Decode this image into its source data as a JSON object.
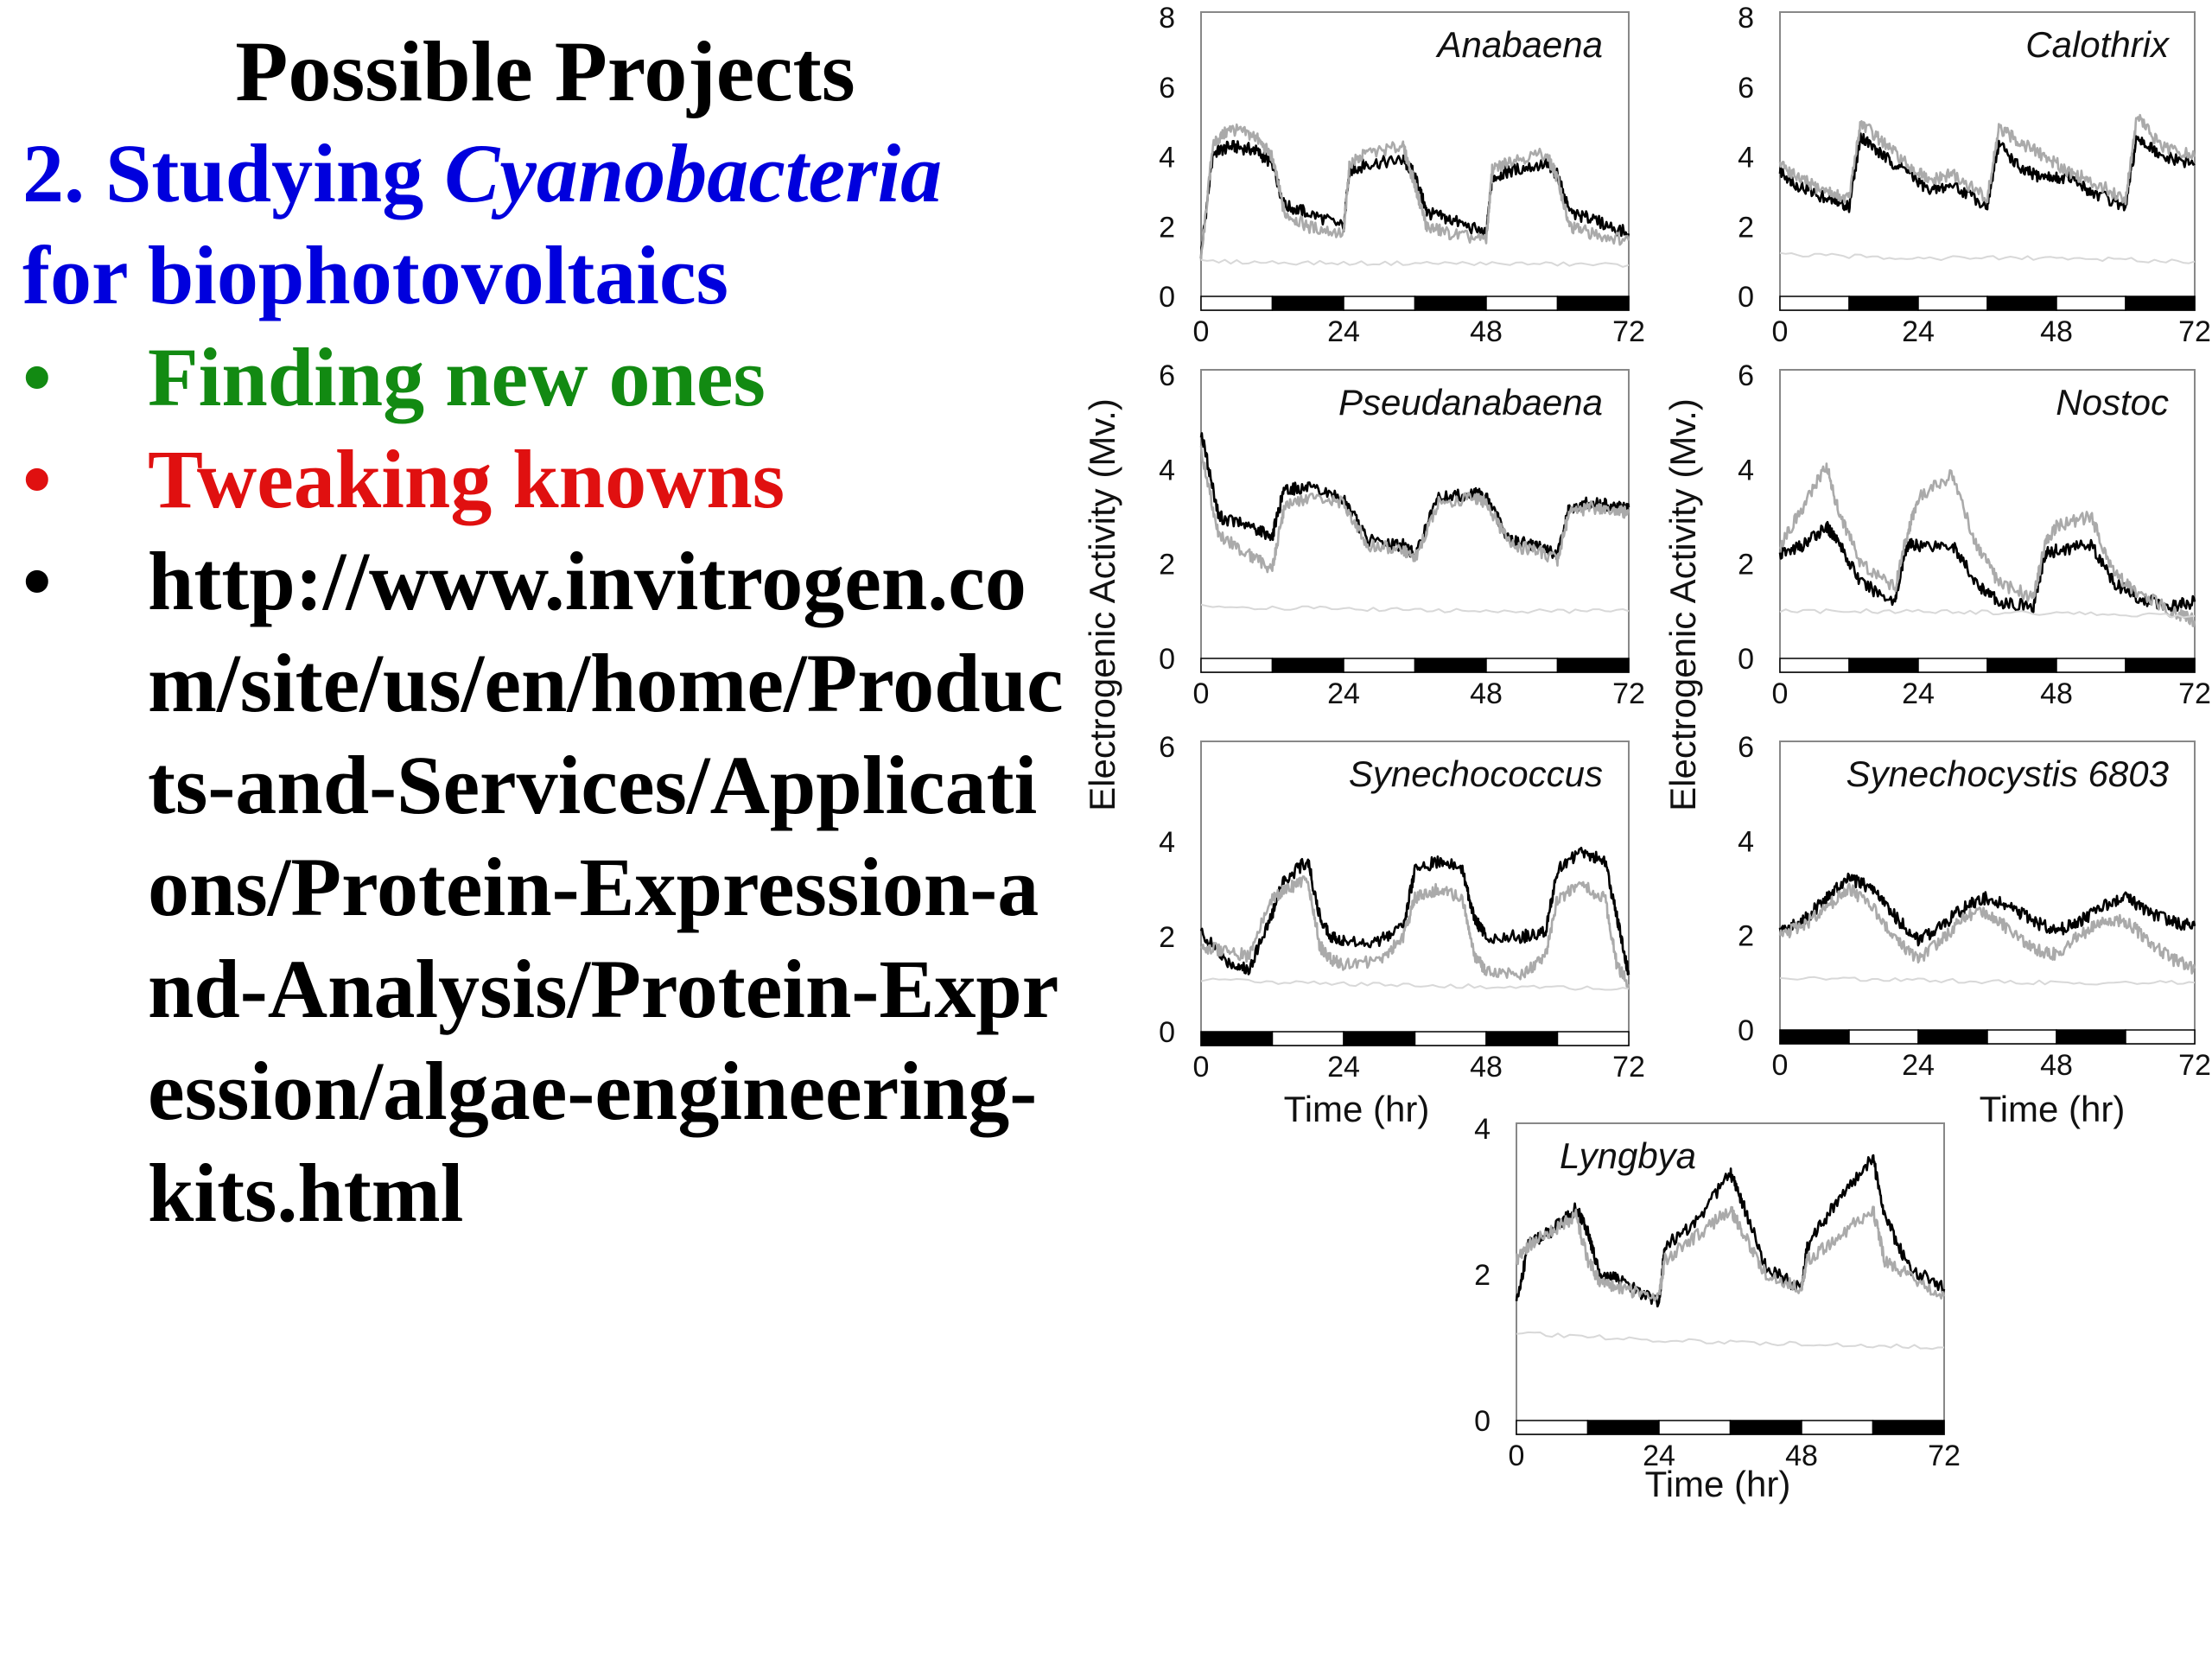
{
  "slide": {
    "title": "Possible Projects",
    "heading_prefix": "2. Studying ",
    "heading_italic": "Cyanobacteria",
    "heading_suffix": "for biophotovoltaics",
    "bullet_char": "•",
    "bullets": [
      {
        "text": "Finding new ones",
        "color": "#128a12"
      },
      {
        "text": "Tweaking knowns",
        "color": "#e01010"
      },
      {
        "text": "http://www.invitrogen.com/site/us/en/home/Products-and-Services/Applications/Protein-Expression-and-Analysis/Protein-Expression/algae-engineering-kits.html",
        "color": "#000000"
      }
    ]
  },
  "figure": {
    "ylabel": "Electrogenic Activity (Mv.)",
    "xlabel": "Time (hr)"
  },
  "chart_data": [
    {
      "type": "line",
      "title": "Anabaena",
      "xlim": [
        0,
        72
      ],
      "ylim": [
        0,
        8
      ],
      "xticks": [
        "0",
        "24",
        "48",
        "72"
      ],
      "yticks": [
        "0",
        "2",
        "4",
        "6",
        "8"
      ],
      "light_dark_bar": [
        "light",
        "dark",
        "light",
        "dark",
        "light",
        "dark"
      ],
      "series": [
        {
          "color": "#000000",
          "x": [
            0,
            2,
            5,
            9,
            12,
            14,
            18,
            24,
            25,
            28,
            34,
            36,
            38,
            42,
            48,
            49,
            52,
            58,
            60,
            62,
            66,
            72
          ],
          "y": [
            1.2,
            4.1,
            4.3,
            4.2,
            3.8,
            2.6,
            2.4,
            2.0,
            3.6,
            3.8,
            3.9,
            3.5,
            2.4,
            2.2,
            1.8,
            3.4,
            3.6,
            3.8,
            3.5,
            2.4,
            2.2,
            1.8
          ]
        },
        {
          "color": "#aaaaaa",
          "x": [
            0,
            2,
            5,
            9,
            12,
            14,
            18,
            24,
            25,
            28,
            34,
            36,
            38,
            42,
            48,
            49,
            52,
            58,
            60,
            62,
            66,
            72
          ],
          "y": [
            1.0,
            4.4,
            4.8,
            4.6,
            4.0,
            2.4,
            2.0,
            1.8,
            3.8,
            4.1,
            4.3,
            3.2,
            2.0,
            1.8,
            1.6,
            3.6,
            3.9,
            4.1,
            3.4,
            2.0,
            1.8,
            1.6
          ]
        },
        {
          "color": "#d8d8d8",
          "x": [
            0,
            24,
            48,
            72
          ],
          "y": [
            1.0,
            0.95,
            0.95,
            0.9
          ]
        }
      ]
    },
    {
      "type": "line",
      "title": "Calothrix",
      "xlim": [
        0,
        72
      ],
      "ylim": [
        0,
        8
      ],
      "xticks": [
        "0",
        "24",
        "48",
        "72"
      ],
      "yticks": [
        "0",
        "2",
        "4",
        "6",
        "8"
      ],
      "light_dark_bar": [
        "light",
        "dark",
        "light",
        "dark",
        "light",
        "dark"
      ],
      "series": [
        {
          "color": "#000000",
          "x": [
            0,
            3,
            8,
            12,
            14,
            18,
            22,
            26,
            30,
            36,
            38,
            42,
            46,
            50,
            54,
            60,
            62,
            66,
            72
          ],
          "y": [
            3.6,
            3.2,
            2.8,
            2.6,
            4.6,
            4.0,
            3.6,
            3.0,
            3.2,
            2.6,
            4.4,
            3.6,
            3.4,
            3.4,
            3.0,
            2.6,
            4.6,
            4.0,
            3.8
          ]
        },
        {
          "color": "#aaaaaa",
          "x": [
            0,
            3,
            8,
            12,
            14,
            18,
            22,
            26,
            30,
            36,
            38,
            42,
            46,
            50,
            54,
            60,
            62,
            66,
            72
          ],
          "y": [
            3.8,
            3.4,
            3.0,
            2.8,
            5.0,
            4.4,
            3.8,
            3.3,
            3.5,
            2.8,
            4.8,
            4.4,
            4.0,
            3.6,
            3.3,
            2.8,
            5.2,
            4.3,
            4.0
          ]
        },
        {
          "color": "#d8d8d8",
          "x": [
            0,
            24,
            48,
            72
          ],
          "y": [
            1.2,
            1.1,
            1.1,
            1.0
          ]
        }
      ]
    },
    {
      "type": "line",
      "title": "Pseudanabaena",
      "xlim": [
        0,
        72
      ],
      "ylim": [
        0,
        6
      ],
      "xticks": [
        "0",
        "24",
        "48",
        "72"
      ],
      "yticks": [
        "0",
        "2",
        "4",
        "6"
      ],
      "light_dark_bar": [
        "light",
        "dark",
        "light",
        "dark",
        "light",
        "dark"
      ],
      "series": [
        {
          "color": "#000000",
          "x": [
            0,
            3,
            8,
            12,
            14,
            18,
            24,
            28,
            34,
            36,
            40,
            46,
            48,
            52,
            56,
            60,
            62,
            66,
            70,
            72
          ],
          "y": [
            4.8,
            3.0,
            2.8,
            2.6,
            3.6,
            3.6,
            3.4,
            2.5,
            2.4,
            2.2,
            3.4,
            3.5,
            3.4,
            2.5,
            2.4,
            2.2,
            3.2,
            3.3,
            3.2,
            3.2
          ]
        },
        {
          "color": "#aaaaaa",
          "x": [
            0,
            3,
            8,
            12,
            14,
            18,
            24,
            28,
            34,
            36,
            40,
            46,
            48,
            52,
            56,
            60,
            62,
            66,
            70,
            72
          ],
          "y": [
            4.4,
            2.6,
            2.2,
            1.9,
            3.2,
            3.4,
            3.3,
            2.4,
            2.3,
            2.1,
            3.3,
            3.4,
            3.3,
            2.4,
            2.3,
            2.1,
            3.1,
            3.2,
            3.1,
            3.1
          ]
        },
        {
          "color": "#d8d8d8",
          "x": [
            0,
            24,
            48,
            72
          ],
          "y": [
            1.1,
            1.05,
            1.0,
            1.0
          ]
        }
      ]
    },
    {
      "type": "line",
      "title": "Nostoc",
      "xlim": [
        0,
        72
      ],
      "ylim": [
        0,
        6
      ],
      "xticks": [
        "0",
        "24",
        "48",
        "72"
      ],
      "yticks": [
        "0",
        "2",
        "4",
        "6"
      ],
      "light_dark_bar": [
        "light",
        "dark",
        "light",
        "dark",
        "light",
        "dark"
      ],
      "series": [
        {
          "color": "#000000",
          "x": [
            0,
            4,
            8,
            10,
            14,
            20,
            22,
            24,
            30,
            34,
            38,
            44,
            46,
            48,
            54,
            58,
            62,
            68,
            72
          ],
          "y": [
            2.2,
            2.4,
            2.8,
            2.5,
            1.6,
            1.2,
            2.4,
            2.4,
            2.4,
            1.6,
            1.2,
            1.1,
            2.2,
            2.3,
            2.4,
            1.6,
            1.3,
            1.1,
            1.2
          ]
        },
        {
          "color": "#aaaaaa",
          "x": [
            0,
            4,
            8,
            10,
            14,
            20,
            22,
            24,
            30,
            34,
            38,
            44,
            46,
            48,
            54,
            58,
            62,
            68,
            72
          ],
          "y": [
            2.4,
            3.2,
            4.1,
            3.2,
            2.0,
            1.5,
            2.6,
            3.4,
            3.9,
            2.4,
            1.6,
            1.3,
            2.4,
            2.8,
            3.0,
            1.8,
            1.4,
            1.0,
            0.8
          ]
        },
        {
          "color": "#d8d8d8",
          "x": [
            0,
            24,
            48,
            72
          ],
          "y": [
            1.0,
            1.0,
            0.95,
            0.9
          ]
        }
      ]
    },
    {
      "type": "line",
      "title": "Synechococcus",
      "xlim": [
        0,
        72
      ],
      "ylim": [
        0,
        6
      ],
      "xticks": [
        "0",
        "24",
        "48",
        "72"
      ],
      "yticks": [
        "0",
        "2",
        "4",
        "6"
      ],
      "light_dark_bar": [
        "dark",
        "light",
        "dark",
        "light",
        "dark",
        "light"
      ],
      "series": [
        {
          "color": "#000000",
          "x": [
            0,
            4,
            8,
            12,
            14,
            18,
            20,
            22,
            24,
            30,
            34,
            36,
            40,
            44,
            46,
            48,
            54,
            58,
            60,
            64,
            68,
            70,
            72
          ],
          "y": [
            2.1,
            1.5,
            1.3,
            2.5,
            3.2,
            3.6,
            2.4,
            2.0,
            1.9,
            1.9,
            2.2,
            3.4,
            3.6,
            3.4,
            2.4,
            2.0,
            2.0,
            2.1,
            3.4,
            3.8,
            3.6,
            2.4,
            1.2
          ]
        },
        {
          "color": "#aaaaaa",
          "x": [
            0,
            4,
            8,
            12,
            14,
            18,
            20,
            22,
            24,
            30,
            34,
            36,
            40,
            44,
            46,
            48,
            54,
            58,
            60,
            64,
            68,
            70,
            72
          ],
          "y": [
            1.8,
            1.7,
            1.6,
            2.8,
            3.0,
            3.2,
            1.8,
            1.5,
            1.4,
            1.5,
            2.0,
            2.8,
            3.0,
            2.8,
            1.6,
            1.3,
            1.2,
            1.6,
            2.8,
            3.1,
            2.8,
            1.4,
            1.0
          ]
        },
        {
          "color": "#d8d8d8",
          "x": [
            0,
            24,
            48,
            72
          ],
          "y": [
            1.1,
            1.0,
            0.95,
            0.9
          ]
        }
      ]
    },
    {
      "type": "line",
      "title": "Synechocystis 6803",
      "xlim": [
        0,
        72
      ],
      "ylim": [
        0,
        6
      ],
      "xticks": [
        "0",
        "24",
        "48",
        "72"
      ],
      "yticks": [
        "0",
        "2",
        "4",
        "6"
      ],
      "light_dark_bar": [
        "dark",
        "light",
        "dark",
        "light",
        "dark",
        "light"
      ],
      "series": [
        {
          "color": "#000000",
          "x": [
            0,
            4,
            8,
            12,
            16,
            20,
            24,
            28,
            32,
            36,
            40,
            44,
            48,
            52,
            56,
            60,
            64,
            68,
            72
          ],
          "y": [
            2.1,
            2.3,
            2.8,
            3.2,
            3.0,
            2.4,
            1.9,
            2.2,
            2.6,
            2.8,
            2.6,
            2.3,
            2.1,
            2.3,
            2.6,
            2.8,
            2.5,
            2.3,
            2.2
          ]
        },
        {
          "color": "#aaaaaa",
          "x": [
            0,
            4,
            8,
            12,
            16,
            20,
            24,
            28,
            32,
            36,
            40,
            44,
            48,
            52,
            56,
            60,
            64,
            68,
            72
          ],
          "y": [
            2.0,
            2.2,
            2.6,
            3.0,
            2.6,
            1.9,
            1.5,
            1.9,
            2.4,
            2.5,
            2.1,
            1.7,
            1.6,
            2.0,
            2.3,
            2.3,
            1.9,
            1.5,
            1.3
          ]
        },
        {
          "color": "#d8d8d8",
          "x": [
            0,
            24,
            48,
            72
          ],
          "y": [
            1.1,
            1.05,
            1.0,
            1.0
          ]
        }
      ]
    },
    {
      "type": "line",
      "title": "Lyngbya",
      "xlim": [
        0,
        72
      ],
      "ylim": [
        0,
        4
      ],
      "xticks": [
        "0",
        "24",
        "48",
        "72"
      ],
      "yticks": [
        "0",
        "2",
        "4"
      ],
      "light_dark_bar": [
        "light",
        "dark",
        "light",
        "dark",
        "light",
        "dark"
      ],
      "series": [
        {
          "color": "#000000",
          "x": [
            0,
            2,
            6,
            10,
            12,
            14,
            18,
            24,
            25,
            30,
            36,
            38,
            42,
            48,
            49,
            54,
            60,
            62,
            66,
            72
          ],
          "y": [
            1.6,
            2.4,
            2.6,
            2.9,
            2.6,
            2.0,
            1.9,
            1.6,
            2.4,
            2.7,
            3.4,
            3.0,
            2.1,
            1.8,
            2.4,
            3.0,
            3.6,
            2.8,
            2.1,
            1.8
          ]
        },
        {
          "color": "#aaaaaa",
          "x": [
            0,
            2,
            6,
            10,
            12,
            14,
            18,
            24,
            25,
            30,
            36,
            38,
            42,
            48,
            49,
            54,
            60,
            62,
            66,
            72
          ],
          "y": [
            2.2,
            2.4,
            2.6,
            2.8,
            2.2,
            1.9,
            1.8,
            1.7,
            2.2,
            2.5,
            2.9,
            2.6,
            2.0,
            1.8,
            2.2,
            2.5,
            2.9,
            2.2,
            2.0,
            1.7
          ]
        },
        {
          "color": "#d8d8d8",
          "x": [
            0,
            24,
            48,
            72
          ],
          "y": [
            1.2,
            1.1,
            1.05,
            1.0
          ]
        }
      ]
    }
  ]
}
